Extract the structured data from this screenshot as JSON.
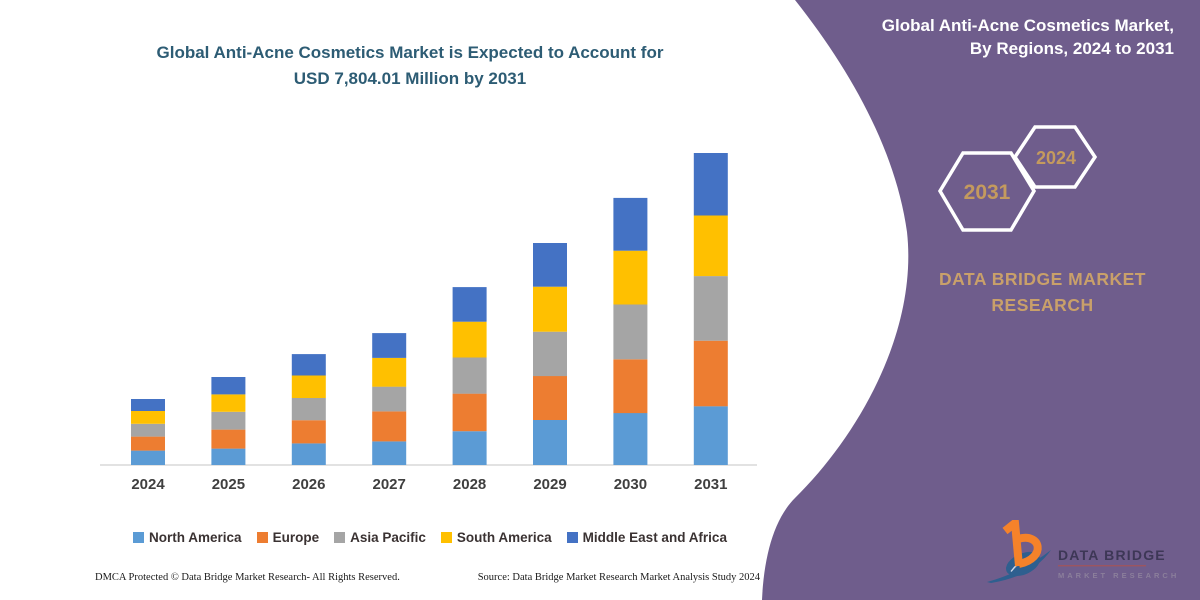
{
  "header": {
    "left_title_line1": "Global Anti-Acne Cosmetics Market is Expected to Account for",
    "left_title_line2": "USD 7,804.01 Million by 2031",
    "right_title_line1": "Global Anti-Acne Cosmetics Market,",
    "right_title_line2": "By Regions, 2024 to 2031"
  },
  "sidebar": {
    "hexagon_large_label": "2031",
    "hexagon_small_label": "2024",
    "brand_line1": "DATA BRIDGE MARKET",
    "brand_line2": "RESEARCH",
    "logo_wordmark": "DATA BRIDGE",
    "logo_tagline": "MARKET RESEARCH"
  },
  "chart_data": {
    "type": "bar",
    "stacked": true,
    "title": "Global Anti-Acne Cosmetics Market is Expected to Account for USD 7,804.01 Million by 2031",
    "unit": "USD Million",
    "categories": [
      "2024",
      "2025",
      "2026",
      "2027",
      "2028",
      "2029",
      "2030",
      "2031"
    ],
    "series": [
      {
        "name": "North America",
        "color": "#5B9BD5",
        "values": [
          360,
          410,
          540,
          590,
          845,
          1125,
          1300,
          1470
        ]
      },
      {
        "name": "Europe",
        "color": "#ED7D31",
        "values": [
          350,
          475,
          580,
          750,
          940,
          1100,
          1345,
          1640
        ]
      },
      {
        "name": "Asia Pacific",
        "color": "#A5A5A5",
        "values": [
          320,
          445,
          555,
          620,
          905,
          1110,
          1370,
          1615
        ]
      },
      {
        "name": "South America",
        "color": "#FFC000",
        "values": [
          320,
          435,
          565,
          720,
          895,
          1125,
          1345,
          1515
        ]
      },
      {
        "name": "Middle East and Africa",
        "color": "#4472C4",
        "values": [
          300,
          435,
          535,
          620,
          865,
          1093,
          1320,
          1564.01
        ]
      }
    ],
    "totals_estimated": [
      1650,
      2200,
      2775,
      3300,
      4450,
      5553,
      6680,
      7804.01
    ],
    "ylim": [
      0,
      7804.01
    ],
    "grid": false,
    "legend_position": "bottom",
    "highlight_value": "USD 7,804.01 Million by 2031"
  },
  "footer": {
    "left": "DMCA Protected © Data Bridge Market Research-  All Rights Reserved.",
    "right": "Source: Data Bridge Market Research  Market Analysis Study 2024"
  },
  "colors": {
    "panel": "#6f5d8c",
    "gold": "#c49a5e",
    "brand_gold": "#c9a06a",
    "title_teal": "#2d5c74",
    "axis_line": "#d9d9d9"
  }
}
